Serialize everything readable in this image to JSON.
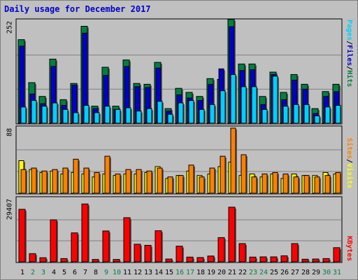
{
  "chart_data": {
    "type": "bar",
    "title": "Daily usage for December 2017",
    "days": [
      "1",
      "2",
      "3",
      "4",
      "5",
      "6",
      "7",
      "8",
      "9",
      "10",
      "11",
      "12",
      "13",
      "14",
      "15",
      "16",
      "17",
      "18",
      "19",
      "20",
      "21",
      "22",
      "23",
      "24",
      "25",
      "26",
      "27",
      "28",
      "29",
      "30",
      "31"
    ],
    "weekend_days": [
      "2",
      "3",
      "9",
      "10",
      "16",
      "17",
      "23",
      "24",
      "30",
      "31"
    ],
    "colors": {
      "pages": "#00d0ff",
      "files": "#0000cc",
      "hits": "#008040",
      "sites": "#ff8000",
      "visits": "#ffff00",
      "kbytes": "#ff0000",
      "weekend_label": "#008040",
      "weekday_label": "#000000"
    },
    "panels": [
      {
        "id": "top",
        "ymax_label": "252",
        "ymax": 252,
        "legend": [
          "Pages",
          "/",
          "Files",
          "/",
          "Hits"
        ],
        "series": [
          {
            "name": "Hits",
            "values": [
              206,
              100,
              66,
              158,
              58,
              98,
              239,
              42,
              138,
              42,
              156,
              98,
              96,
              150,
              36,
              86,
              76,
              66,
              110,
              108,
              256,
              146,
              146,
              66,
              126,
              76,
              120,
              96,
              36,
              78,
              96
            ]
          },
          {
            "name": "Files",
            "values": [
              190,
              72,
              48,
              140,
              44,
              94,
              222,
              36,
              118,
              34,
              140,
              90,
              88,
              136,
              30,
              70,
              62,
              56,
              96,
              134,
              238,
              130,
              132,
              46,
              120,
              58,
              106,
              84,
              24,
              66,
              78
            ]
          },
          {
            "name": "Pages",
            "values": [
              40,
              56,
              42,
              50,
              34,
              26,
              44,
              26,
              42,
              34,
              38,
              30,
              36,
              54,
              22,
              50,
              56,
              34,
              46,
              80,
              120,
              90,
              90,
              34,
              116,
              42,
              46,
              46,
              18,
              40,
              44
            ]
          }
        ]
      },
      {
        "id": "middle",
        "ymax_label": "88",
        "ymax": 88,
        "legend": [
          "Sites",
          "/",
          "Visits"
        ],
        "series": [
          {
            "name": "Visits",
            "values": [
              44,
              32,
              28,
              30,
              26,
              28,
              26,
              22,
              26,
              24,
              26,
              26,
              28,
              36,
              20,
              24,
              30,
              24,
              26,
              36,
              42,
              24,
              26,
              22,
              26,
              20,
              26,
              24,
              24,
              28,
              26
            ]
          },
          {
            "name": "Sites",
            "values": [
              32,
              34,
              30,
              32,
              34,
              46,
              34,
              28,
              50,
              26,
              32,
              32,
              30,
              34,
              22,
              24,
              38,
              22,
              34,
              50,
              88,
              52,
              22,
              26,
              28,
              26,
              22,
              24,
              22,
              24,
              28
            ]
          }
        ]
      },
      {
        "id": "bottom",
        "ymax_label": "29407",
        "ymax": 29407,
        "legend": [
          "KBytes"
        ],
        "series": [
          {
            "name": "KBytes",
            "values": [
              24500,
              3800,
              1900,
              19600,
              1500,
              13500,
              27000,
              1100,
              14400,
              1100,
              20600,
              8200,
              7700,
              14500,
              1300,
              7300,
              2200,
              2000,
              2700,
              11300,
              25500,
              8500,
              2200,
              2300,
              2300,
              2800,
              8500,
              1200,
              1300,
              1500,
              6600
            ]
          }
        ]
      }
    ]
  }
}
